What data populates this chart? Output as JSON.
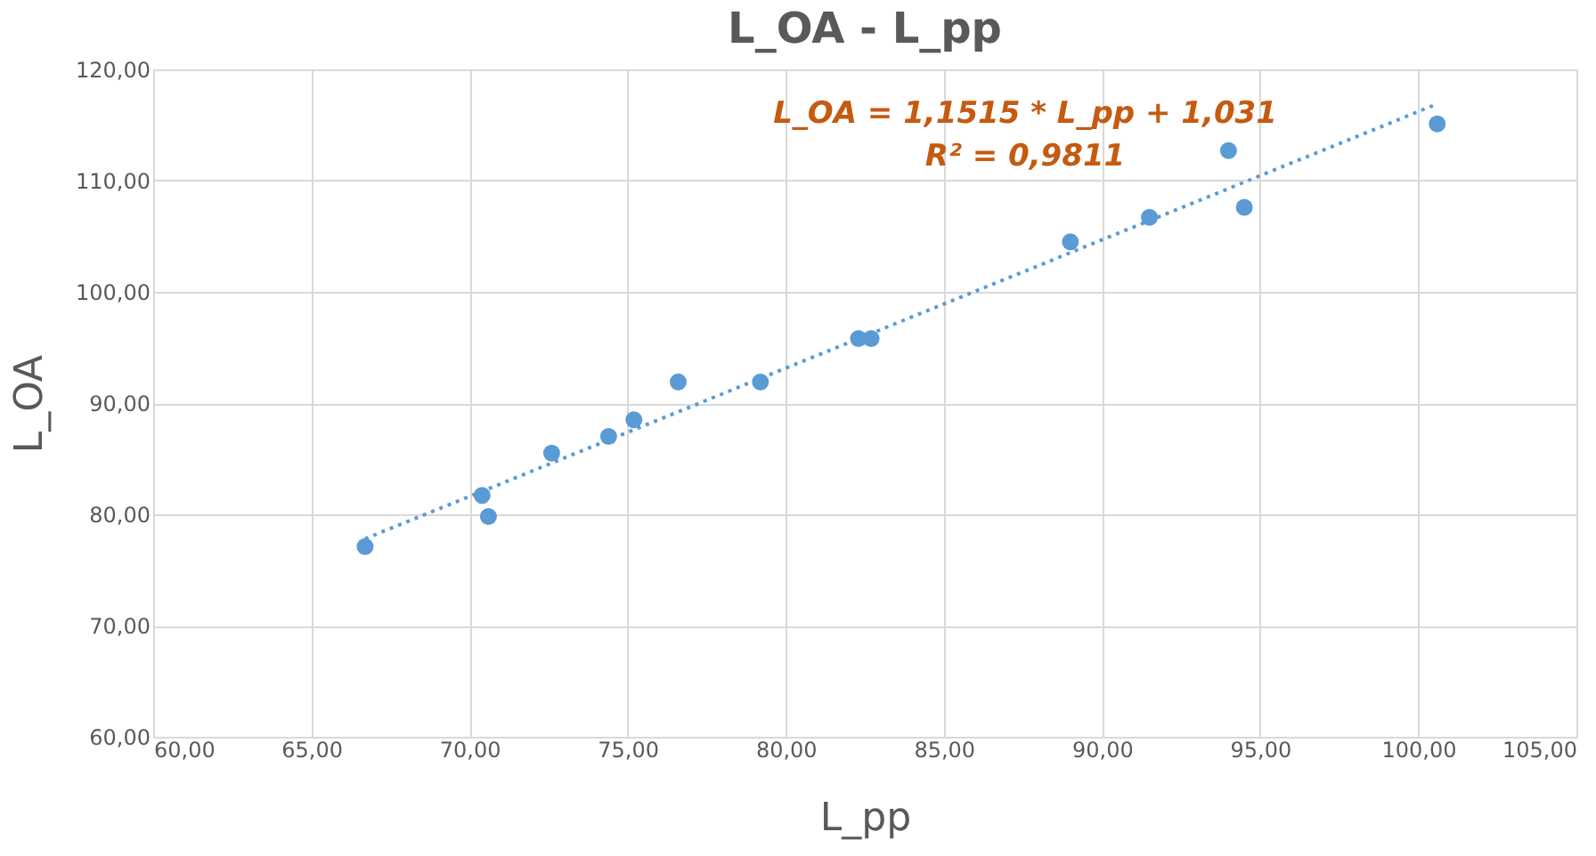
{
  "chart_data": {
    "type": "scatter",
    "title": "L_OA - L_pp",
    "xlabel": "L_pp",
    "ylabel": "L_OA",
    "annotations": [
      "L_OA  = 1,1515 * L_pp + 1,031",
      "R² = 0,9811"
    ],
    "xlim": [
      60,
      105
    ],
    "ylim": [
      60,
      120
    ],
    "xticks": [
      {
        "value": 60,
        "label": "60,00"
      },
      {
        "value": 65,
        "label": "65,00"
      },
      {
        "value": 70,
        "label": "70,00"
      },
      {
        "value": 75,
        "label": "75,00"
      },
      {
        "value": 80,
        "label": "80,00"
      },
      {
        "value": 85,
        "label": "85,00"
      },
      {
        "value": 90,
        "label": "90,00"
      },
      {
        "value": 95,
        "label": "95,00"
      },
      {
        "value": 100,
        "label": "100,00"
      },
      {
        "value": 105,
        "label": "105,00"
      }
    ],
    "yticks": [
      {
        "value": 60,
        "label": "60,00"
      },
      {
        "value": 70,
        "label": "70,00"
      },
      {
        "value": 80,
        "label": "80,00"
      },
      {
        "value": 90,
        "label": "90,00"
      },
      {
        "value": 100,
        "label": "100,00"
      },
      {
        "value": 110,
        "label": "110,00"
      },
      {
        "value": 120,
        "label": "120,00"
      }
    ],
    "grid": true,
    "series": [
      {
        "marker": "circle",
        "color": "#5b9bd5",
        "x": [
          66.7,
          70.4,
          70.6,
          72.6,
          74.4,
          75.2,
          76.6,
          79.2,
          82.3,
          82.7,
          89.0,
          91.5,
          94.0,
          94.5,
          100.6
        ],
        "values": [
          77.1,
          81.7,
          79.8,
          85.5,
          87.0,
          88.5,
          91.9,
          91.9,
          95.8,
          95.8,
          104.5,
          106.7,
          112.7,
          107.6,
          115.1
        ]
      },
      {
        "type": "line",
        "color": "#5b9bd5",
        "line_style": "dotted",
        "x": [
          66.7,
          100.6
        ],
        "values": [
          77.8,
          116.9
        ]
      }
    ]
  }
}
